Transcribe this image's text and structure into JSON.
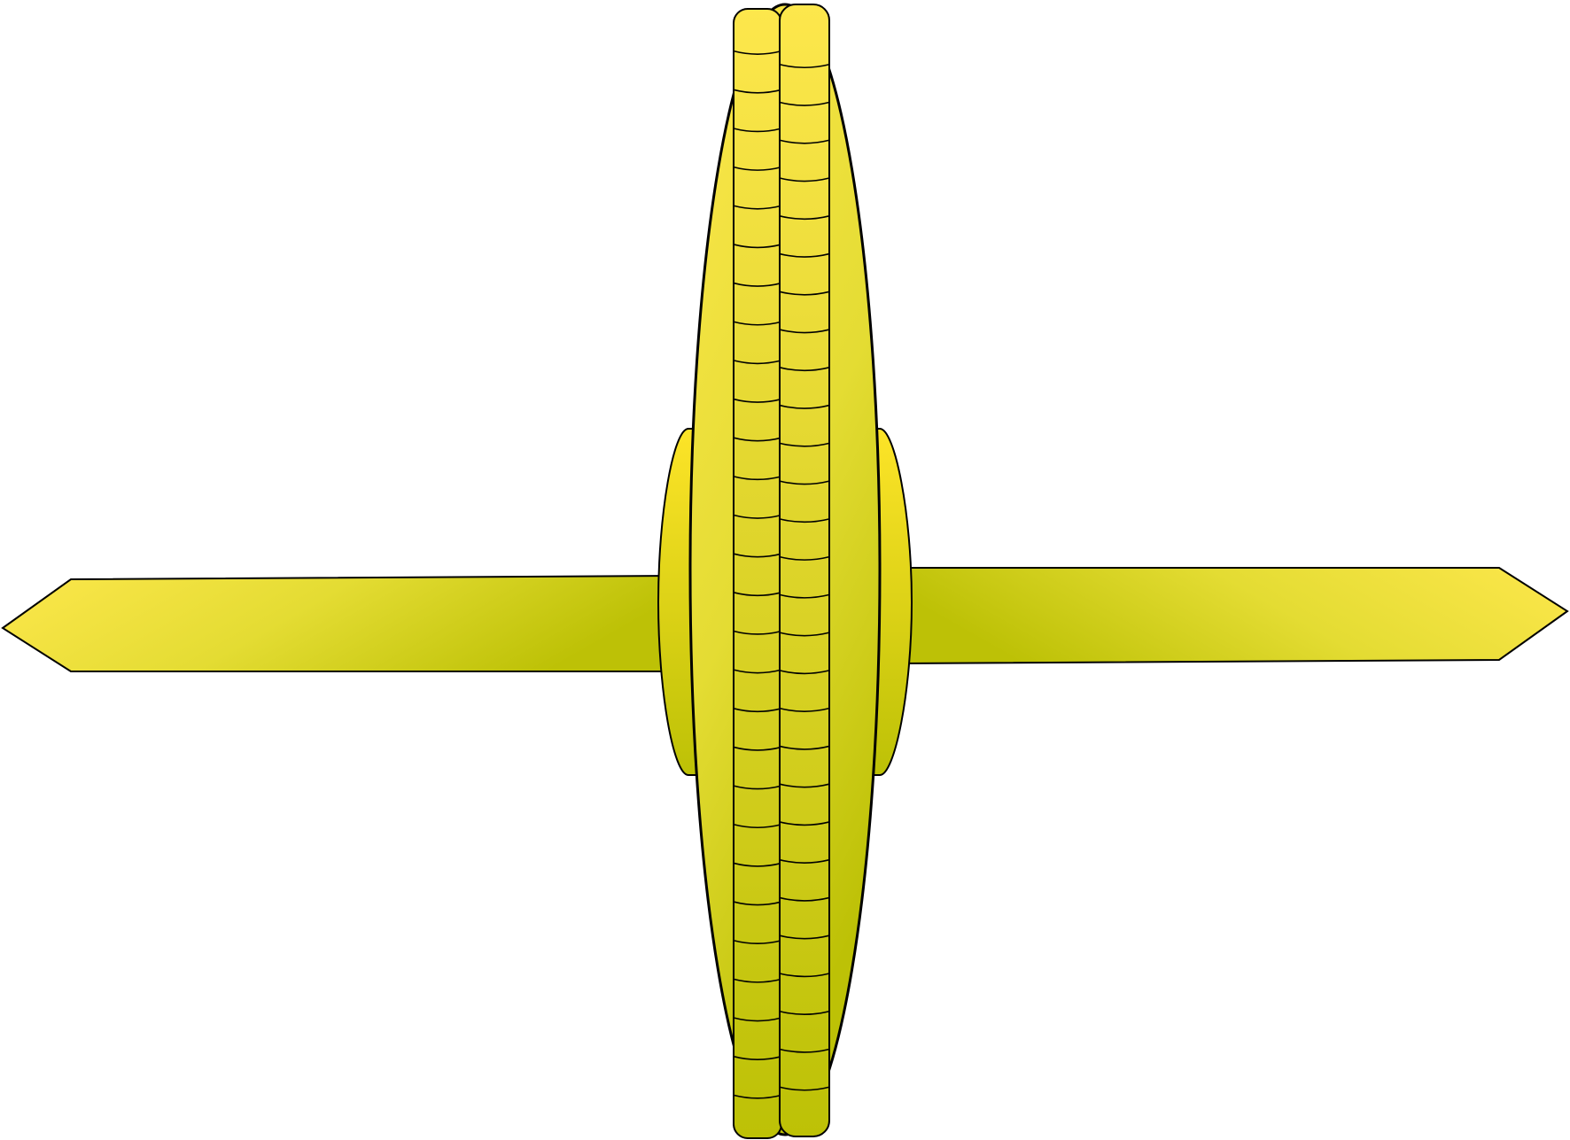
{
  "figure": {
    "subject": "wheel-and-axle",
    "colors": {
      "background": "#ffffff",
      "fill_light": "#fde74c",
      "fill_mid": "#e4dc33",
      "fill_dark": "#bdc106",
      "hub_fill": "#fde428",
      "outline": "#000000"
    },
    "segment_counts": {
      "left_column": 29,
      "right_column": 29
    }
  }
}
